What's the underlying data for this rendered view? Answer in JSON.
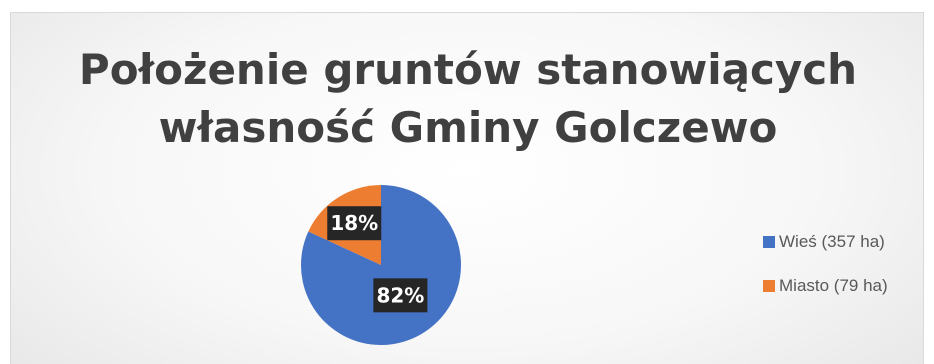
{
  "chart_data": {
    "type": "pie",
    "title": "Położenie gruntów stanowiących własność Gminy Golczewo",
    "title_lines": [
      "Położenie gruntów stanowiących",
      "własność Gminy Golczewo"
    ],
    "categories": [
      "Wieś (357 ha)",
      "Miasto (79 ha)"
    ],
    "values": [
      357,
      79
    ],
    "data_labels": [
      "82%",
      "18%"
    ],
    "colors": [
      "#4472c4",
      "#ed7d31"
    ],
    "legend_position": "right",
    "start_angle_deg": 0,
    "direction": "clockwise"
  }
}
